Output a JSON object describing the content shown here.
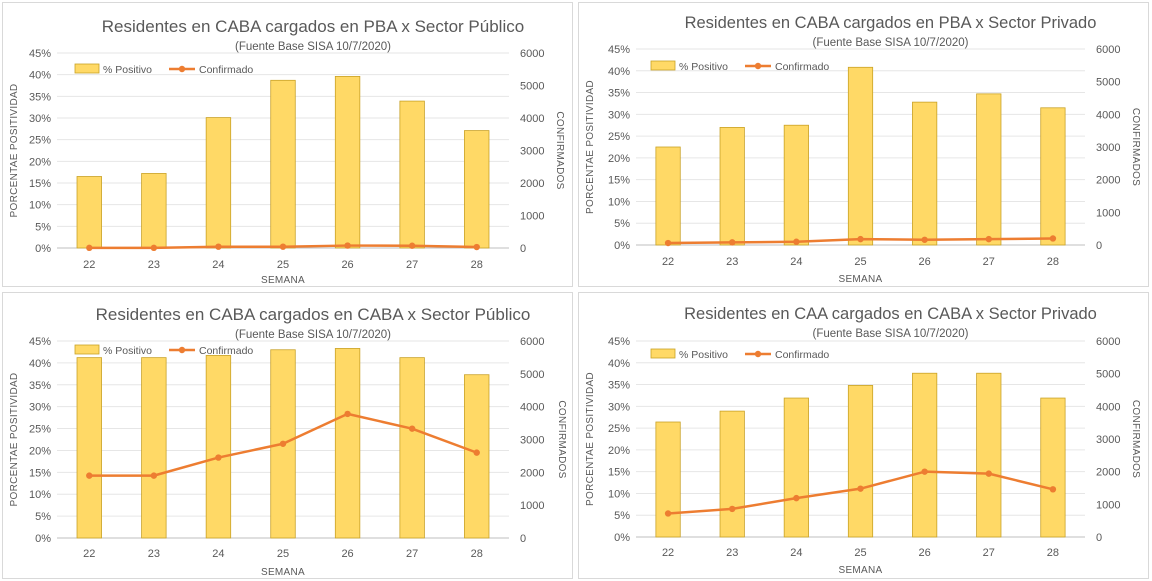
{
  "colors": {
    "bar_fill": "#FFD966",
    "bar_stroke": "#C9A227",
    "line": "#ED7D31",
    "text": "#595959",
    "grid": "#e6e6e6"
  },
  "chart_data": [
    {
      "type": "bar",
      "title": "Residentes en CABA cargados en PBA x Sector Público",
      "subtitle": "(Fuente Base SISA 10/7/2020)",
      "xlabel": "SEMANA",
      "ylabel": "PORCENTAE POSITIVIDAD",
      "y2label": "CONFIRMADOS",
      "categories": [
        "22",
        "23",
        "24",
        "25",
        "26",
        "27",
        "28"
      ],
      "yticks": [
        "0%",
        "5%",
        "10%",
        "15%",
        "20%",
        "25%",
        "30%",
        "35%",
        "40%",
        "45%"
      ],
      "y2ticks": [
        "0",
        "1000",
        "2000",
        "3000",
        "4000",
        "5000",
        "6000"
      ],
      "ylim": [
        0,
        45
      ],
      "y2lim": [
        0,
        6000
      ],
      "legend": "top-left",
      "series": [
        {
          "name": "% Positivo",
          "type": "bar",
          "axis": "left",
          "values": [
            16.5,
            17.2,
            30.1,
            38.7,
            39.6,
            33.9,
            27.1
          ]
        },
        {
          "name": "Confirmado",
          "type": "line",
          "axis": "right",
          "values": [
            5,
            5,
            40,
            40,
            75,
            70,
            30
          ]
        }
      ]
    },
    {
      "type": "bar",
      "title": "Residentes en CABA cargados en PBA x Sector Privado",
      "subtitle": "(Fuente Base SISA 10/7/2020)",
      "xlabel": "SEMANA",
      "ylabel": "PORCENTAE POSITIVIDAD",
      "y2label": "CONFIRMADOS",
      "categories": [
        "22",
        "23",
        "24",
        "25",
        "26",
        "27",
        "28"
      ],
      "yticks": [
        "0%",
        "5%",
        "10%",
        "15%",
        "20%",
        "25%",
        "30%",
        "35%",
        "40%",
        "45%"
      ],
      "y2ticks": [
        "0",
        "1000",
        "2000",
        "3000",
        "4000",
        "5000",
        "6000"
      ],
      "ylim": [
        0,
        45
      ],
      "y2lim": [
        0,
        6000
      ],
      "legend": "top-left",
      "series": [
        {
          "name": "% Positivo",
          "type": "bar",
          "axis": "left",
          "values": [
            22.5,
            27.0,
            27.5,
            40.8,
            32.8,
            34.7,
            31.5
          ]
        },
        {
          "name": "Confirmado",
          "type": "line",
          "axis": "right",
          "values": [
            60,
            80,
            100,
            180,
            160,
            180,
            200
          ]
        }
      ]
    },
    {
      "type": "bar",
      "title": "Residentes en CABA cargados en CABA x Sector Público",
      "subtitle": "(Fuente Base SISA 10/7/2020)",
      "xlabel": "SEMANA",
      "ylabel": "PORCENTAE POSITIVIDAD",
      "y2label": "CONFIRMADOS",
      "categories": [
        "22",
        "23",
        "24",
        "25",
        "26",
        "27",
        "28"
      ],
      "yticks": [
        "0%",
        "5%",
        "10%",
        "15%",
        "20%",
        "25%",
        "30%",
        "35%",
        "40%",
        "45%"
      ],
      "y2ticks": [
        "0",
        "1000",
        "2000",
        "3000",
        "4000",
        "5000",
        "6000"
      ],
      "ylim": [
        0,
        45
      ],
      "y2lim": [
        0,
        6000
      ],
      "legend": "top-left",
      "series": [
        {
          "name": "% Positivo",
          "type": "bar",
          "axis": "left",
          "values": [
            41.2,
            41.2,
            41.7,
            43.0,
            43.3,
            41.2,
            37.3
          ]
        },
        {
          "name": "Confirmado",
          "type": "line",
          "axis": "right",
          "values": [
            1900,
            1900,
            2450,
            2870,
            3780,
            3330,
            2600
          ]
        }
      ]
    },
    {
      "type": "bar",
      "title": "Residentes en CAA cargados en CABA x Sector Privado",
      "subtitle": "(Fuente Base SISA 10/7/2020)",
      "xlabel": "SEMANA",
      "ylabel": "PORCENTAE POSITIVIDAD",
      "y2label": "CONFIRMADOS",
      "categories": [
        "22",
        "23",
        "24",
        "25",
        "26",
        "27",
        "28"
      ],
      "yticks": [
        "0%",
        "5%",
        "10%",
        "15%",
        "20%",
        "25%",
        "30%",
        "35%",
        "40%",
        "45%"
      ],
      "y2ticks": [
        "0",
        "1000",
        "2000",
        "3000",
        "4000",
        "5000",
        "6000"
      ],
      "ylim": [
        0,
        45
      ],
      "y2lim": [
        0,
        6000
      ],
      "legend": "top-left",
      "series": [
        {
          "name": "% Positivo",
          "type": "bar",
          "axis": "left",
          "values": [
            26.4,
            28.9,
            31.9,
            34.8,
            37.6,
            37.6,
            31.9
          ]
        },
        {
          "name": "Confirmado",
          "type": "line",
          "axis": "right",
          "values": [
            720,
            860,
            1190,
            1480,
            2000,
            1940,
            1460
          ]
        }
      ]
    }
  ]
}
